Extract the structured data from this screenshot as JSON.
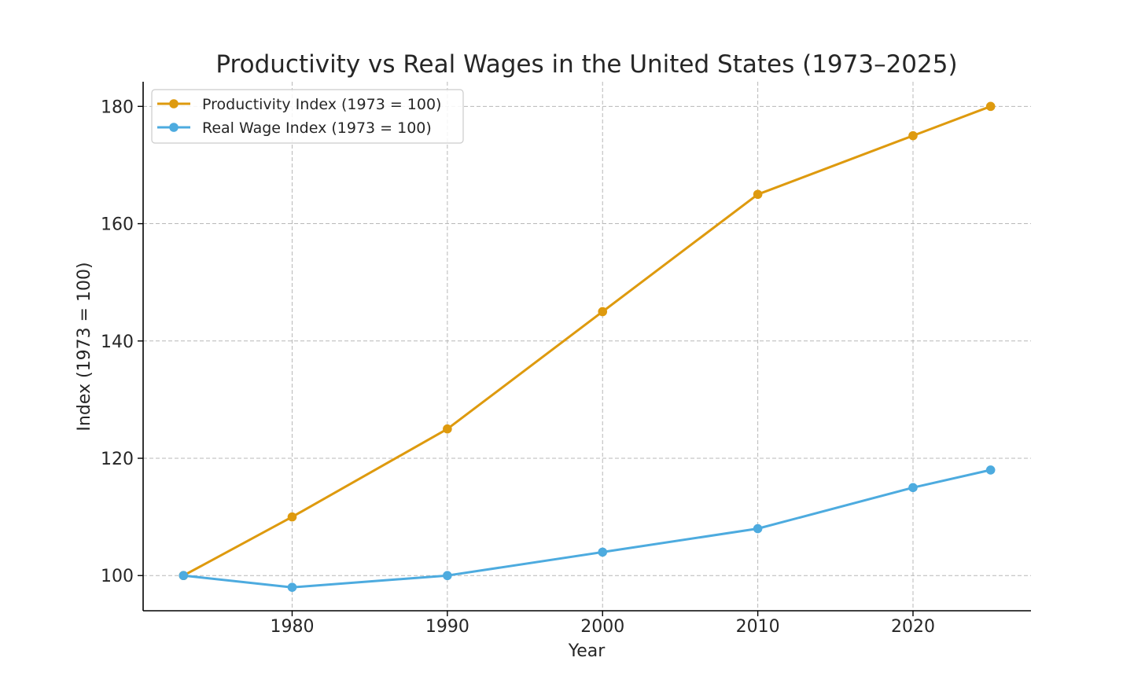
{
  "chart_data": {
    "type": "line",
    "title": "Productivity vs Real Wages in the United States (1973–2025)",
    "xlabel": "Year",
    "ylabel": "Index (1973 = 100)",
    "x": [
      1973,
      1980,
      1990,
      2000,
      2010,
      2020,
      2025
    ],
    "xlim": [
      1970.4,
      2027.6
    ],
    "ylim": [
      94,
      184.2
    ],
    "xticks": [
      1980,
      1990,
      2000,
      2010,
      2020
    ],
    "xtick_labels": [
      "1980",
      "1990",
      "2000",
      "2010",
      "2020"
    ],
    "yticks": [
      100,
      120,
      140,
      160,
      180
    ],
    "ytick_labels": [
      "100",
      "120",
      "140",
      "160",
      "180"
    ],
    "grid": true,
    "legend_position": "top-left",
    "series": [
      {
        "name": "Productivity Index (1973 = 100)",
        "color": "#de9a0e",
        "marker": "circle",
        "values": [
          100,
          110,
          125,
          145,
          165,
          175,
          180
        ]
      },
      {
        "name": "Real Wage Index (1973 = 100)",
        "color": "#4dabdf",
        "marker": "circle",
        "values": [
          100,
          98,
          100,
          104,
          108,
          115,
          118
        ]
      }
    ]
  }
}
